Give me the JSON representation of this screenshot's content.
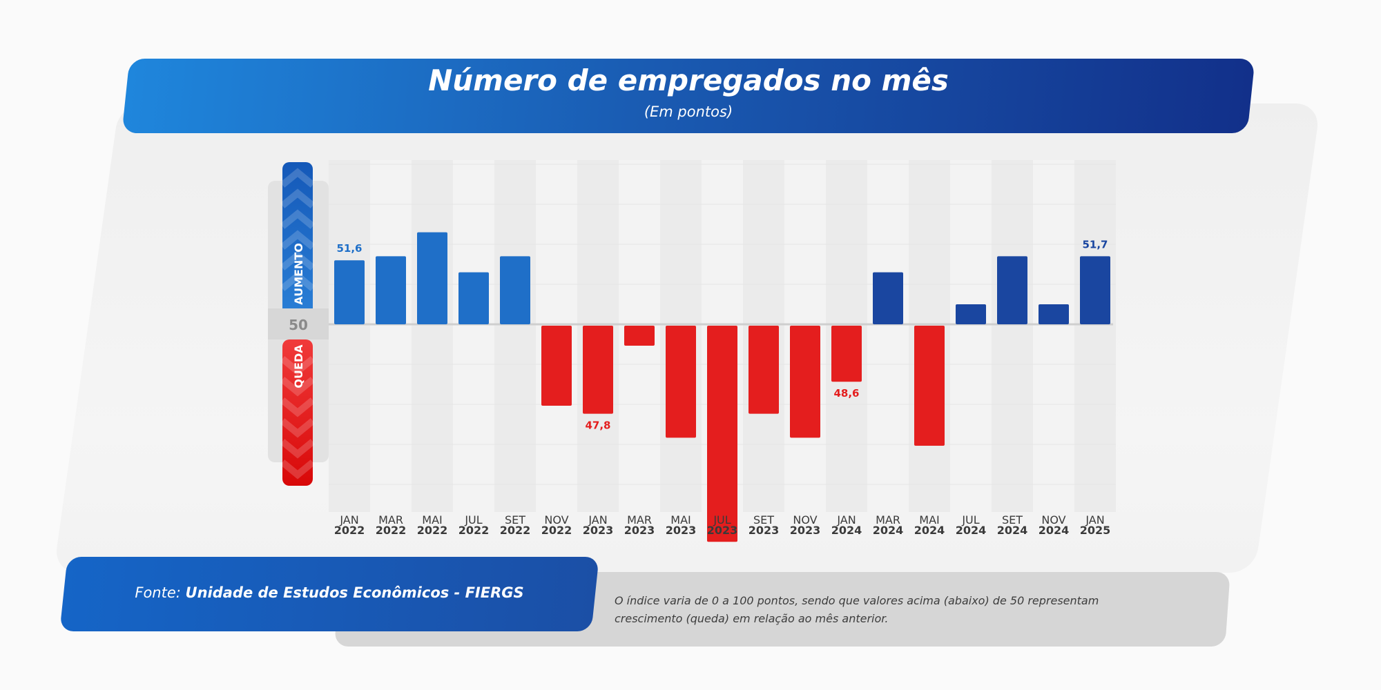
{
  "header": {
    "title": "Número de empregados no mês",
    "subtitle": "(Em pontos)"
  },
  "scale": {
    "up_label": "AUMENTO",
    "down_label": "QUEDA",
    "center_label": "50",
    "colors": {
      "up": "#1f6fc8",
      "down": "#e41e1e",
      "recent_up": "#1a46a0"
    }
  },
  "footer": {
    "source_prefix": "Fonte: ",
    "source_name": "Unidade de Estudos Econômicos - FIERGS",
    "note": "O índice varia de 0 a 100 pontos, sendo que valores acima (abaixo) de 50 representam crescimento (queda) em relação ao mês anterior."
  },
  "chart_data": {
    "type": "bar",
    "title": "Número de empregados no mês",
    "subtitle": "(Em pontos)",
    "baseline": 50,
    "categories": [
      [
        "JAN",
        "2022"
      ],
      [
        "MAR",
        "2022"
      ],
      [
        "MAI",
        "2022"
      ],
      [
        "JUL",
        "2022"
      ],
      [
        "SET",
        "2022"
      ],
      [
        "NOV",
        "2022"
      ],
      [
        "JAN",
        "2023"
      ],
      [
        "MAR",
        "2023"
      ],
      [
        "MAI",
        "2023"
      ],
      [
        "JUL",
        "2023"
      ],
      [
        "SET",
        "2023"
      ],
      [
        "NOV",
        "2023"
      ],
      [
        "JAN",
        "2024"
      ],
      [
        "MAR",
        "2024"
      ],
      [
        "MAI",
        "2024"
      ],
      [
        "JUL",
        "2024"
      ],
      [
        "SET",
        "2024"
      ],
      [
        "NOV",
        "2024"
      ],
      [
        "JAN",
        "2025"
      ]
    ],
    "values": [
      51.6,
      51.7,
      52.3,
      51.3,
      51.7,
      48.0,
      47.8,
      49.5,
      47.2,
      44.6,
      47.8,
      47.2,
      48.6,
      51.3,
      47.0,
      50.5,
      51.7,
      50.5,
      51.7
    ],
    "data_labels": {
      "0": "51,6",
      "6": "47,8",
      "12": "48,6",
      "18": "51,7"
    },
    "ylim": [
      40,
      60
    ],
    "grid": true
  }
}
